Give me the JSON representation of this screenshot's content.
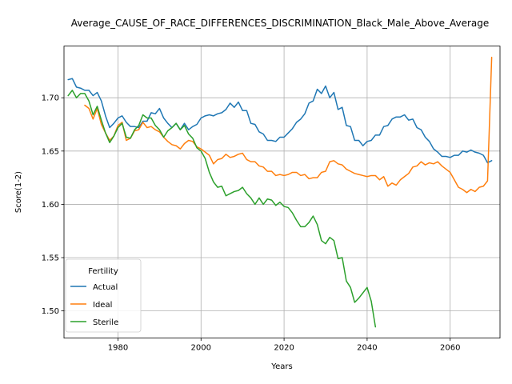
{
  "chart_data": {
    "type": "line",
    "title": "Average_CAUSE_OF_RACE_DIFFERENCES_DISCRIMINATION_Black_Male_Above_Average",
    "xlabel": "Years",
    "ylabel": "Score(1-2)",
    "xlim": [
      1967,
      2072
    ],
    "ylim": [
      1.4745,
      1.7485
    ],
    "x_ticks": [
      1980,
      2000,
      2020,
      2040,
      2060
    ],
    "y_ticks": [
      1.5,
      1.55,
      1.6,
      1.65,
      1.7
    ],
    "y_tick_labels": [
      "1.50",
      "1.55",
      "1.60",
      "1.65",
      "1.70"
    ],
    "x_tick_labels": [
      "1980",
      "2000",
      "2020",
      "2040",
      "2060"
    ],
    "grid": true,
    "legend": {
      "title": "Fertility",
      "placement": "lower-left"
    },
    "series": [
      {
        "name": "Actual",
        "color": "#1f77b4",
        "x": [
          1968,
          1969,
          1970,
          1971,
          1972,
          1973,
          1974,
          1975,
          1976,
          1977,
          1978,
          1979,
          1980,
          1981,
          1982,
          1983,
          1984,
          1985,
          1986,
          1987,
          1988,
          1989,
          1990,
          1991,
          1992,
          1993,
          1994,
          1995,
          1996,
          1997,
          1998,
          1999,
          2000,
          2001,
          2002,
          2003,
          2004,
          2005,
          2006,
          2007,
          2008,
          2009,
          2010,
          2011,
          2012,
          2013,
          2014,
          2015,
          2016,
          2017,
          2018,
          2019,
          2020,
          2021,
          2022,
          2023,
          2024,
          2025,
          2026,
          2027,
          2028,
          2029,
          2030,
          2031,
          2032,
          2033,
          2034,
          2035,
          2036,
          2037,
          2038,
          2039,
          2040,
          2041,
          2042,
          2043,
          2044,
          2045,
          2046,
          2047,
          2048,
          2049,
          2050,
          2051,
          2052,
          2053,
          2054,
          2055,
          2056,
          2057,
          2058,
          2059,
          2060,
          2061,
          2062,
          2063,
          2064,
          2065,
          2066,
          2067,
          2068,
          2069,
          2070
        ],
        "y": [
          1.717,
          1.718,
          1.71,
          1.709,
          1.707,
          1.707,
          1.702,
          1.705,
          1.697,
          1.683,
          1.672,
          1.676,
          1.681,
          1.683,
          1.677,
          1.673,
          1.673,
          1.672,
          1.678,
          1.678,
          1.686,
          1.685,
          1.69,
          1.681,
          1.676,
          1.672,
          1.676,
          1.67,
          1.676,
          1.67,
          1.673,
          1.675,
          1.681,
          1.683,
          1.684,
          1.683,
          1.685,
          1.686,
          1.689,
          1.695,
          1.691,
          1.696,
          1.688,
          1.688,
          1.676,
          1.675,
          1.668,
          1.666,
          1.66,
          1.66,
          1.659,
          1.663,
          1.663,
          1.667,
          1.671,
          1.677,
          1.68,
          1.685,
          1.695,
          1.697,
          1.708,
          1.704,
          1.711,
          1.7,
          1.705,
          1.689,
          1.691,
          1.674,
          1.673,
          1.66,
          1.66,
          1.655,
          1.659,
          1.66,
          1.665,
          1.665,
          1.673,
          1.674,
          1.68,
          1.682,
          1.682,
          1.684,
          1.679,
          1.68,
          1.672,
          1.67,
          1.663,
          1.659,
          1.652,
          1.649,
          1.645,
          1.645,
          1.644,
          1.646,
          1.646,
          1.65,
          1.649,
          1.651,
          1.649,
          1.648,
          1.646,
          1.639,
          1.641
        ]
      },
      {
        "name": "Ideal",
        "color": "#ff7f0e",
        "x": [
          1972,
          1973,
          1974,
          1975,
          1976,
          1977,
          1978,
          1979,
          1980,
          1981,
          1982,
          1983,
          1984,
          1985,
          1986,
          1987,
          1988,
          1989,
          1990,
          1991,
          1992,
          1993,
          1994,
          1995,
          1996,
          1997,
          1998,
          1999,
          2000,
          2001,
          2002,
          2003,
          2004,
          2005,
          2006,
          2007,
          2008,
          2009,
          2010,
          2011,
          2012,
          2013,
          2014,
          2015,
          2016,
          2017,
          2018,
          2019,
          2020,
          2021,
          2022,
          2023,
          2024,
          2025,
          2026,
          2027,
          2028,
          2029,
          2030,
          2031,
          2032,
          2033,
          2034,
          2035,
          2036,
          2037,
          2038,
          2039,
          2040,
          2041,
          2042,
          2043,
          2044,
          2045,
          2046,
          2047,
          2048,
          2049,
          2050,
          2051,
          2052,
          2053,
          2054,
          2055,
          2056,
          2057,
          2058,
          2059,
          2060,
          2061,
          2062,
          2063,
          2064,
          2065,
          2066,
          2067,
          2068,
          2069,
          2070
        ],
        "y": [
          1.693,
          1.69,
          1.68,
          1.69,
          1.675,
          1.667,
          1.66,
          1.664,
          1.674,
          1.677,
          1.66,
          1.662,
          1.669,
          1.67,
          1.677,
          1.672,
          1.673,
          1.67,
          1.668,
          1.663,
          1.659,
          1.656,
          1.655,
          1.652,
          1.657,
          1.66,
          1.659,
          1.654,
          1.652,
          1.649,
          1.646,
          1.638,
          1.642,
          1.643,
          1.647,
          1.644,
          1.645,
          1.647,
          1.648,
          1.642,
          1.64,
          1.64,
          1.636,
          1.635,
          1.631,
          1.631,
          1.627,
          1.628,
          1.627,
          1.628,
          1.63,
          1.63,
          1.627,
          1.628,
          1.624,
          1.625,
          1.625,
          1.63,
          1.631,
          1.64,
          1.641,
          1.638,
          1.637,
          1.633,
          1.631,
          1.629,
          1.628,
          1.627,
          1.626,
          1.627,
          1.627,
          1.623,
          1.626,
          1.617,
          1.62,
          1.618,
          1.623,
          1.626,
          1.629,
          1.635,
          1.636,
          1.64,
          1.637,
          1.639,
          1.638,
          1.64,
          1.636,
          1.633,
          1.63,
          1.623,
          1.616,
          1.614,
          1.611,
          1.614,
          1.612,
          1.616,
          1.617,
          1.622,
          1.738
        ]
      },
      {
        "name": "Sterile",
        "color": "#2ca02c",
        "x": [
          1968,
          1969,
          1970,
          1971,
          1972,
          1973,
          1974,
          1975,
          1976,
          1977,
          1978,
          1979,
          1980,
          1981,
          1982,
          1983,
          1984,
          1985,
          1986,
          1987,
          1988,
          1989,
          1990,
          1991,
          1992,
          1993,
          1994,
          1995,
          1996,
          1997,
          1998,
          1999,
          2000,
          2001,
          2002,
          2003,
          2004,
          2005,
          2006,
          2007,
          2008,
          2009,
          2010,
          2011,
          2012,
          2013,
          2014,
          2015,
          2016,
          2017,
          2018,
          2019,
          2020,
          2021,
          2022,
          2023,
          2024,
          2025,
          2026,
          2027,
          2028,
          2029,
          2030,
          2031,
          2032,
          2033,
          2034,
          2035,
          2036,
          2037,
          2038,
          2039,
          2040,
          2041,
          2042
        ],
        "y": [
          1.702,
          1.707,
          1.7,
          1.704,
          1.704,
          1.697,
          1.684,
          1.692,
          1.679,
          1.667,
          1.658,
          1.664,
          1.672,
          1.676,
          1.663,
          1.662,
          1.67,
          1.674,
          1.684,
          1.681,
          1.681,
          1.674,
          1.67,
          1.663,
          1.669,
          1.672,
          1.676,
          1.67,
          1.674,
          1.666,
          1.662,
          1.653,
          1.65,
          1.643,
          1.63,
          1.621,
          1.616,
          1.617,
          1.608,
          1.61,
          1.612,
          1.613,
          1.616,
          1.61,
          1.606,
          1.6,
          1.606,
          1.6,
          1.605,
          1.604,
          1.599,
          1.602,
          1.598,
          1.597,
          1.592,
          1.585,
          1.579,
          1.579,
          1.583,
          1.589,
          1.581,
          1.566,
          1.563,
          1.569,
          1.566,
          1.549,
          1.55,
          1.528,
          1.522,
          1.508,
          1.512,
          1.517,
          1.522,
          1.509,
          1.485
        ]
      }
    ]
  }
}
